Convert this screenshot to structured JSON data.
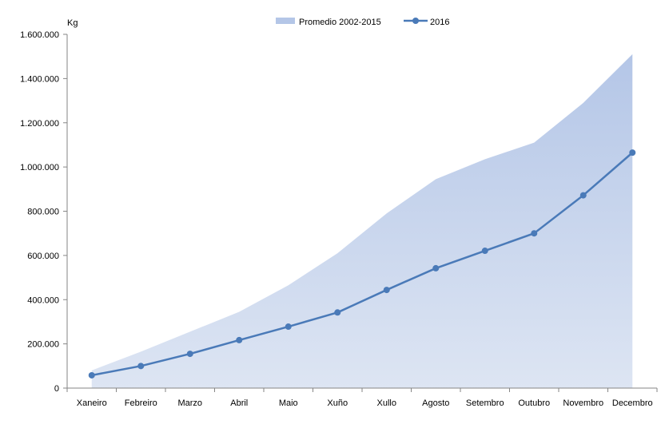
{
  "chart_data": {
    "type": "area",
    "unit_label": "Kg",
    "categories": [
      "Xaneiro",
      "Febreiro",
      "Marzo",
      "Abril",
      "Maio",
      "Xuño",
      "Xullo",
      "Agosto",
      "Setembro",
      "Outubro",
      "Novembro",
      "Decembro"
    ],
    "ylim": [
      0,
      1600000
    ],
    "y_ticks": [
      0,
      200000,
      400000,
      600000,
      800000,
      1000000,
      1200000,
      1400000,
      1600000
    ],
    "y_tick_labels": [
      "0",
      "200.000",
      "400.000",
      "600.000",
      "800.000",
      "1.000.000",
      "1.200.000",
      "1.400.000",
      "1.600.000"
    ],
    "grid": false,
    "legend_position": "top-center",
    "series": [
      {
        "name": "Promedio 2002-2015",
        "kind": "area",
        "color": "#b4c6e7",
        "values": [
          80000,
          165000,
          255000,
          345000,
          465000,
          610000,
          790000,
          945000,
          1035000,
          1110000,
          1290000,
          1510000
        ]
      },
      {
        "name": "2016",
        "kind": "line",
        "color": "#4a7ab8",
        "values": [
          58000,
          100000,
          155000,
          217000,
          278000,
          342000,
          444000,
          542000,
          621000,
          700000,
          872000,
          1065000
        ]
      }
    ]
  }
}
